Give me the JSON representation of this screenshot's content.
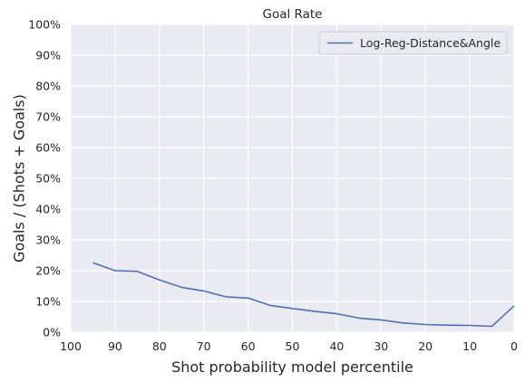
{
  "chart_data": {
    "type": "line",
    "title": "Goal Rate",
    "xlabel": "Shot probability model percentile",
    "ylabel": "Goals / (Shots + Goals)",
    "xlim": [
      100,
      0
    ],
    "ylim": [
      0,
      100
    ],
    "x_ticks": [
      "100",
      "90",
      "80",
      "70",
      "60",
      "50",
      "40",
      "30",
      "20",
      "10",
      "0"
    ],
    "y_ticks": [
      "0%",
      "10%",
      "20%",
      "30%",
      "40%",
      "50%",
      "60%",
      "70%",
      "80%",
      "90%",
      "100%"
    ],
    "grid": true,
    "legend_position": "top-right",
    "series": [
      {
        "name": "Log-Reg-Distance&Angle",
        "color": "#4c72b0",
        "x": [
          95,
          90,
          85,
          80,
          75,
          70,
          65,
          60,
          55,
          50,
          45,
          40,
          35,
          30,
          25,
          20,
          15,
          10,
          5,
          0
        ],
        "values": [
          22.6,
          20.0,
          19.8,
          17.0,
          14.6,
          13.4,
          11.5,
          11.1,
          8.7,
          7.7,
          6.8,
          6.0,
          4.6,
          4.0,
          3.0,
          2.5,
          2.3,
          2.2,
          1.9,
          8.6
        ]
      }
    ]
  }
}
